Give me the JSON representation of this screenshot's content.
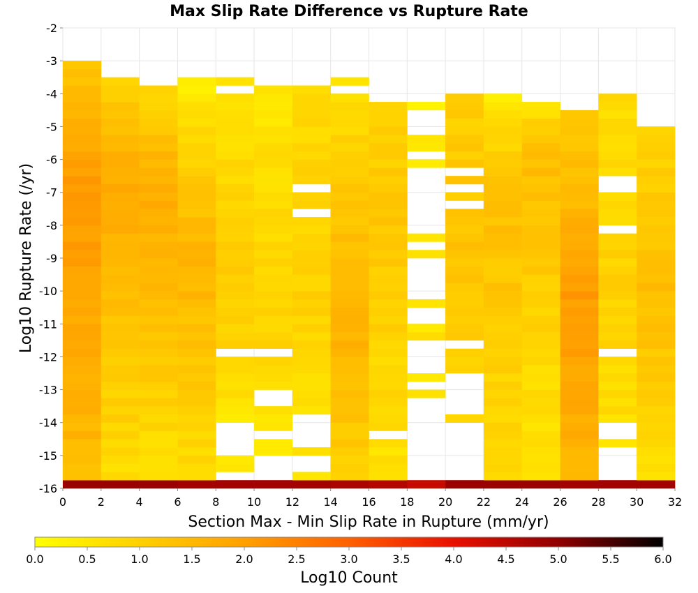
{
  "chart_data": {
    "type": "heatmap",
    "title": "Max Slip Rate Difference vs Rupture Rate",
    "xlabel": "Section Max - Min Slip Rate in Rupture (mm/yr)",
    "ylabel": "Log10 Rupture Rate (/yr)",
    "xlim": [
      0,
      32
    ],
    "ylim": [
      -16,
      -2
    ],
    "x_ticks": [
      "0",
      "2",
      "4",
      "6",
      "8",
      "10",
      "12",
      "14",
      "16",
      "18",
      "20",
      "22",
      "24",
      "26",
      "28",
      "30",
      "32"
    ],
    "y_ticks": [
      "-2",
      "-3",
      "-4",
      "-5",
      "-6",
      "-7",
      "-8",
      "-9",
      "-10",
      "-11",
      "-12",
      "-13",
      "-14",
      "-15",
      "-16"
    ],
    "x_bin_width": 2,
    "y_bin_width": 0.25,
    "grid": true,
    "colorbar": {
      "label": "Log10 Count",
      "range": [
        0,
        6
      ],
      "ticks": [
        "0.0",
        "0.5",
        "1.0",
        "1.5",
        "2.0",
        "2.5",
        "3.0",
        "3.5",
        "4.0",
        "4.5",
        "5.0",
        "5.5",
        "6.0"
      ],
      "colors": [
        "#ffff00",
        "#ffd000",
        "#ffa000",
        "#ff6000",
        "#e81000",
        "#900000",
        "#000000"
      ]
    },
    "columns": [
      {
        "x_range": [
          0,
          2
        ],
        "y_top": -3.0,
        "top_val": 1.2,
        "mid_val": 2.1,
        "bot_val": 1.4,
        "peak_y": -6.75,
        "bottom_row_val": 4.9,
        "gaps": []
      },
      {
        "x_range": [
          2,
          4
        ],
        "y_top": -3.5,
        "top_val": 1.0,
        "mid_val": 1.8,
        "bot_val": 0.7,
        "peak_y": -6.5,
        "bottom_row_val": 4.9,
        "gaps": []
      },
      {
        "x_range": [
          4,
          6
        ],
        "y_top": -3.75,
        "top_val": 0.8,
        "mid_val": 1.8,
        "bot_val": 0.6,
        "peak_y": -7.0,
        "bottom_row_val": 4.9,
        "gaps": []
      },
      {
        "x_range": [
          6,
          8
        ],
        "y_top": -3.5,
        "top_val": 0.4,
        "mid_val": 1.6,
        "bot_val": 0.7,
        "peak_y": -9.0,
        "bottom_row_val": 4.8,
        "gaps": []
      },
      {
        "x_range": [
          8,
          10
        ],
        "y_top": -3.5,
        "top_val": 0.6,
        "mid_val": 1.1,
        "bot_val": 0.3,
        "peak_y": -10.0,
        "bottom_row_val": 4.8,
        "gaps": [
          [
            -4,
            -3.75
          ],
          [
            -12,
            -11.75
          ],
          [
            -15,
            -14
          ],
          [
            -15.75,
            -15.5
          ]
        ]
      },
      {
        "x_range": [
          10,
          12
        ],
        "y_top": -3.75,
        "top_val": 0.5,
        "mid_val": 1.0,
        "bot_val": 0.4,
        "peak_y": -10.5,
        "bottom_row_val": 4.8,
        "gaps": [
          [
            -12,
            -11.75
          ],
          [
            -13.5,
            -13
          ],
          [
            -14.5,
            -14.25
          ],
          [
            -15.75,
            -15
          ]
        ]
      },
      {
        "x_range": [
          12,
          14
        ],
        "y_top": -3.75,
        "top_val": 0.8,
        "mid_val": 1.0,
        "bot_val": 0.4,
        "peak_y": -10.0,
        "bottom_row_val": 4.8,
        "gaps": [
          [
            -7,
            -6.75
          ],
          [
            -7.75,
            -7.5
          ],
          [
            -14.75,
            -13.75
          ],
          [
            -15.5,
            -15
          ]
        ]
      },
      {
        "x_range": [
          14,
          16
        ],
        "y_top": -3.5,
        "top_val": 0.6,
        "mid_val": 1.7,
        "bot_val": 0.9,
        "peak_y": -11.0,
        "bottom_row_val": 4.7,
        "gaps": [
          [
            -4,
            -3.75
          ]
        ]
      },
      {
        "x_range": [
          16,
          18
        ],
        "y_top": -4.25,
        "top_val": 0.9,
        "mid_val": 1.2,
        "bot_val": 0.6,
        "peak_y": -8.0,
        "bottom_row_val": 4.6,
        "gaps": [
          [
            -14.5,
            -14.25
          ]
        ]
      },
      {
        "x_range": [
          18,
          20
        ],
        "y_top": -4.25,
        "top_val": 0.4,
        "mid_val": 0.6,
        "bot_val": 0.6,
        "peak_y": -8.5,
        "bottom_row_val": 4.4,
        "gaps": [
          [
            -5.25,
            -4.5
          ],
          [
            -6,
            -5.75
          ],
          [
            -6.5,
            -6.25
          ],
          [
            -8.25,
            -6.5
          ],
          [
            -8.75,
            -8.5
          ],
          [
            -10.25,
            -9.0
          ],
          [
            -11,
            -10.5
          ],
          [
            -12.5,
            -11.5
          ],
          [
            -13,
            -12.75
          ],
          [
            -15.75,
            -13.25
          ]
        ]
      },
      {
        "x_range": [
          20,
          22
        ],
        "y_top": -4.0,
        "top_val": 1.0,
        "mid_val": 1.3,
        "bot_val": 0.6,
        "peak_y": -9.5,
        "bottom_row_val": 4.9,
        "gaps": [
          [
            -6.5,
            -6.25
          ],
          [
            -7.0,
            -6.75
          ],
          [
            -7.5,
            -7.25
          ],
          [
            -11.75,
            -11.5
          ],
          [
            -13.75,
            -12.5
          ],
          [
            -15.75,
            -14.0
          ]
        ]
      },
      {
        "x_range": [
          22,
          24
        ],
        "y_top": -4.0,
        "top_val": 0.4,
        "mid_val": 1.4,
        "bot_val": 0.7,
        "peak_y": -7.0,
        "bottom_row_val": 4.9,
        "gaps": []
      },
      {
        "x_range": [
          24,
          26
        ],
        "y_top": -4.25,
        "top_val": 0.6,
        "mid_val": 1.4,
        "bot_val": 0.5,
        "peak_y": -6.0,
        "bottom_row_val": 4.9,
        "gaps": []
      },
      {
        "x_range": [
          26,
          28
        ],
        "y_top": -4.5,
        "top_val": 1.0,
        "mid_val": 2.1,
        "bot_val": 1.5,
        "peak_y": -10.5,
        "bottom_row_val": 4.8,
        "gaps": []
      },
      {
        "x_range": [
          28,
          30
        ],
        "y_top": -4.0,
        "top_val": 0.7,
        "mid_val": 1.0,
        "bot_val": 0.5,
        "peak_y": -10.0,
        "bottom_row_val": 4.8,
        "gaps": [
          [
            -7,
            -6.5
          ],
          [
            -8.25,
            -8.0
          ],
          [
            -12,
            -11.75
          ],
          [
            -14.5,
            -14.0
          ],
          [
            -15.75,
            -14.75
          ]
        ]
      },
      {
        "x_range": [
          30,
          32
        ],
        "y_top": -5.0,
        "top_val": 0.9,
        "mid_val": 1.4,
        "bot_val": 0.6,
        "peak_y": -10.0,
        "bottom_row_val": 4.8,
        "gaps": []
      }
    ]
  }
}
